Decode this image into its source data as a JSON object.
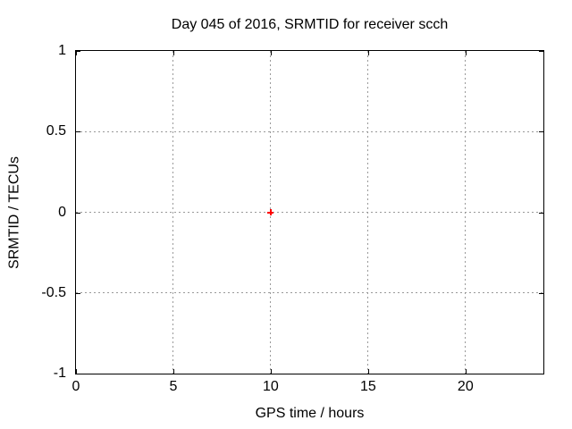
{
  "window": {
    "background_color": "#ffffff"
  },
  "chart_data": {
    "type": "scatter",
    "title": "Day 045 of 2016, SRMTID for receiver scch",
    "xlabel": "GPS time / hours",
    "ylabel": "SRMTID / TECUs",
    "xlim": [
      0,
      24
    ],
    "ylim": [
      -1,
      1
    ],
    "xticks": [
      {
        "value": 0,
        "label": "0"
      },
      {
        "value": 5,
        "label": "5"
      },
      {
        "value": 10,
        "label": "10"
      },
      {
        "value": 15,
        "label": "15"
      },
      {
        "value": 20,
        "label": "20"
      }
    ],
    "yticks": [
      {
        "value": 1,
        "label": "1"
      },
      {
        "value": 0.5,
        "label": "0.5"
      },
      {
        "value": 0,
        "label": "0"
      },
      {
        "value": -0.5,
        "label": "-0.5"
      },
      {
        "value": -1,
        "label": "-1"
      }
    ],
    "grid": true,
    "legend": "none",
    "grid_color": "#999999",
    "axis_color": "#000000",
    "text_color": "#000000",
    "series": [
      {
        "marker": "plus",
        "color": "#ff0000",
        "points": [
          {
            "x": 10,
            "y": 0
          }
        ]
      }
    ]
  }
}
